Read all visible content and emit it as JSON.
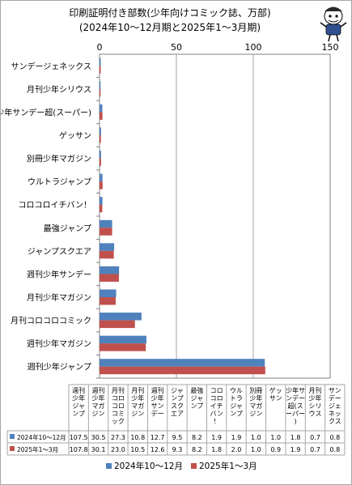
{
  "title_line1": "印刷証明付き部数(少年向けコミック誌、万部)",
  "title_line2": "(2024年10～12月期と2025年1～3月期)",
  "colors": {
    "series1": "#4F81BD",
    "series2": "#C0504D",
    "grid": "#A6A6A6",
    "axis": "#808080"
  },
  "mascot_icon": "mascot-cartoon-icon",
  "chart_data": {
    "type": "bar",
    "orientation": "horizontal",
    "title": "印刷証明付き部数(少年向けコミック誌、万部)",
    "subtitle": "(2024年10～12月期と2025年1～3月期)",
    "categories": [
      "週刊少年ジャンプ",
      "週刊少年マガジン",
      "月刊コロコロコミック",
      "月刊少年マガジン",
      "週刊少年サンデー",
      "ジャンプスクエア",
      "最強ジャンプ",
      "コロコロイチバン！",
      "ウルトラジャンプ",
      "別冊少年マガジン",
      "ゲッサン",
      "少年サンデー超(スーパー)",
      "月刊少年シリウス",
      "サンデージェネックス"
    ],
    "table_headers": [
      "週刊少年ジャンプ",
      "週刊少年マガジン",
      "月刊コロコロコミック",
      "月刊少年マガジン",
      "週刊少年サンデー",
      "ジャンプスクエア",
      "最強ジャンプ",
      "コロコロイチバン！",
      "ウルトラジャンプ",
      "別冊少年マガジン",
      "ゲッサン",
      "少年サンデー超(スーパー)",
      "月刊少年シリウス",
      "サンデージェネックス"
    ],
    "table_values_text": [
      [
        "107.5",
        "30.5",
        "27.3",
        "10.8",
        "12.7",
        "9.5",
        "8.2",
        "1.9",
        "1.9",
        "1.0",
        "1.0",
        "1.8",
        "0.7",
        "0.8"
      ],
      [
        "107.8",
        "30.1",
        "23.0",
        "10.5",
        "12.6",
        "9.3",
        "8.2",
        "1.8",
        "2.0",
        "1.0",
        "0.9",
        "1.9",
        "0.7",
        "0.8"
      ]
    ],
    "series": [
      {
        "name": "2024年10～12月",
        "values": [
          107.5,
          30.5,
          27.3,
          10.8,
          12.7,
          9.5,
          8.2,
          1.9,
          1.9,
          1.0,
          1.0,
          1.8,
          0.7,
          0.8
        ]
      },
      {
        "name": "2025年1～3月",
        "values": [
          107.8,
          30.1,
          23.0,
          10.5,
          12.6,
          9.3,
          8.2,
          1.8,
          2.0,
          1.0,
          0.9,
          1.9,
          0.7,
          0.8
        ]
      }
    ],
    "xlim": [
      0,
      150
    ],
    "xticks": [
      "0",
      "50",
      "100",
      "150"
    ],
    "grid": true,
    "legend_position": "bottom"
  }
}
